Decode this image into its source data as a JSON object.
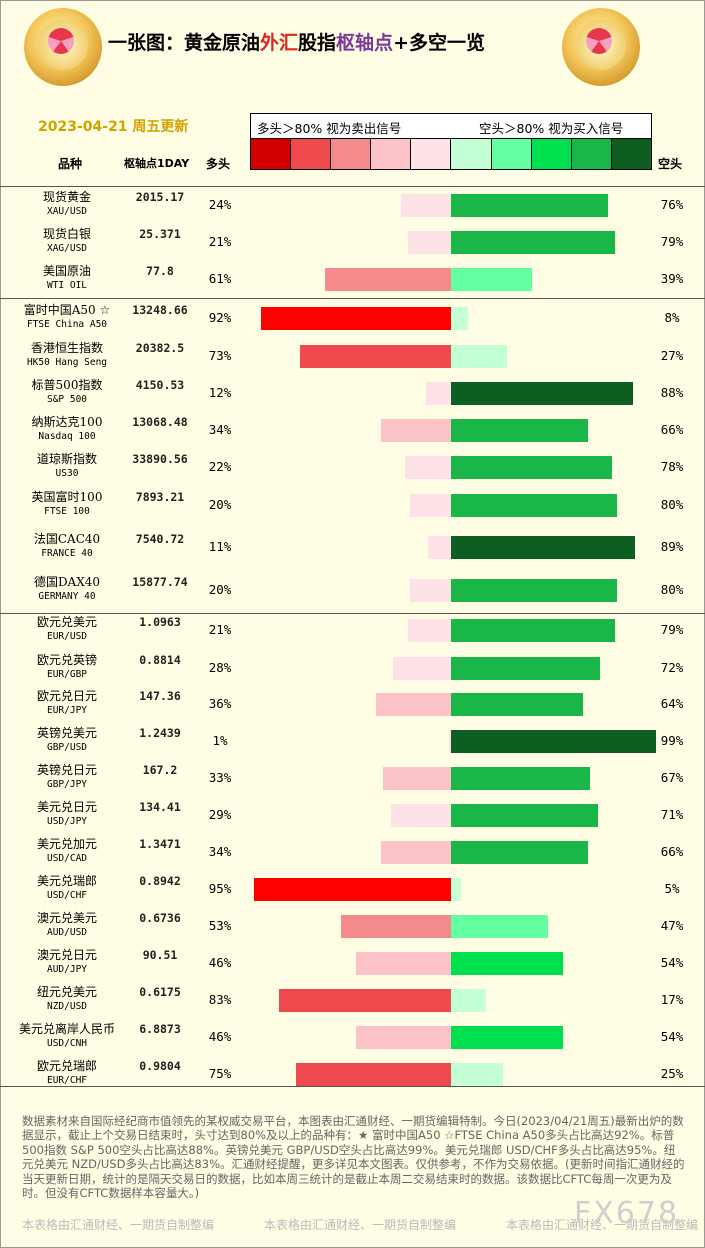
{
  "header": {
    "title_parts": [
      {
        "text": "一张图：黄金原油",
        "color": "#000000"
      },
      {
        "text": "外汇",
        "color": "#e0261b"
      },
      {
        "text": "股指",
        "color": "#000000"
      },
      {
        "text": "枢轴点",
        "color": "#7a3a9a"
      },
      {
        "text": "+多空一览",
        "color": "#000000"
      }
    ],
    "date": "2023-04-21 周五更新",
    "legend_left": "多头＞80% 视为卖出信号",
    "legend_right": "空头＞80% 视为买入信号",
    "logo_left": "gold-badge",
    "logo_right": "gold-badge"
  },
  "colors": {
    "swatches": [
      "#d40000",
      "#ee4a4e",
      "#f58a8c",
      "#fbc2c7",
      "#fde3e8",
      "#c4ffd6",
      "#63ffa0",
      "#00e04e",
      "#1ab648",
      "#0e5e22"
    ],
    "long_scale": [
      [
        90,
        "#ff0000"
      ],
      [
        70,
        "#ee4a4e"
      ],
      [
        50,
        "#f58a8c"
      ],
      [
        30,
        "#fbc2c7"
      ],
      [
        0,
        "#fde3e8"
      ]
    ],
    "short_scale": [
      [
        85,
        "#0e5e22"
      ],
      [
        60,
        "#1ab648"
      ],
      [
        50,
        "#00e04e"
      ],
      [
        30,
        "#63ffa0"
      ],
      [
        0,
        "#c4ffd6"
      ]
    ]
  },
  "columns": {
    "name": "品种",
    "pivot": "枢轴点1DAY",
    "long": "多头",
    "short": "空头"
  },
  "chart_data": {
    "type": "bar",
    "categories": [
      "现货黄金",
      "现货白银",
      "美国原油",
      "富时中国A50 ☆",
      "香港恒生指数",
      "标普500指数",
      "纳斯达克100",
      "道琼斯指数",
      "英国富时100",
      "法国CAC40",
      "德国DAX40",
      "欧元兑美元",
      "欧元兑英镑",
      "欧元兑日元",
      "英镑兑美元",
      "英镑兑日元",
      "美元兑日元",
      "美元兑加元",
      "美元兑瑞郎",
      "澳元兑美元",
      "澳元兑日元",
      "纽元兑美元",
      "美元兑离岸人民币",
      "欧元兑瑞郎"
    ],
    "series": [
      {
        "name": "多头",
        "values": [
          24,
          21,
          61,
          92,
          73,
          12,
          34,
          22,
          20,
          11,
          20,
          21,
          28,
          36,
          1,
          33,
          29,
          34,
          95,
          53,
          46,
          83,
          46,
          75
        ]
      },
      {
        "name": "空头",
        "values": [
          76,
          79,
          39,
          8,
          27,
          88,
          66,
          78,
          80,
          89,
          80,
          79,
          72,
          64,
          99,
          67,
          71,
          66,
          5,
          47,
          54,
          17,
          54,
          25
        ]
      }
    ],
    "ylim": [
      0,
      100
    ]
  },
  "rows": [
    {
      "cn": "现货黄金",
      "en": "XAU/USD",
      "pivot": "2015.17",
      "long": "24%",
      "short": "76%"
    },
    {
      "cn": "现货白银",
      "en": "XAG/USD",
      "pivot": "25.371",
      "long": "21%",
      "short": "79%"
    },
    {
      "cn": "美国原油",
      "en": "WTI OIL",
      "pivot": "77.8",
      "long": "61%",
      "short": "39%"
    },
    {
      "cn": "富时中国A50 ☆",
      "en": "FTSE China A50",
      "pivot": "13248.66",
      "long": "92%",
      "short": "8%"
    },
    {
      "cn": "香港恒生指数",
      "en": "HK50 Hang Seng",
      "pivot": "20382.5",
      "long": "73%",
      "short": "27%"
    },
    {
      "cn": "标普500指数",
      "en": "S&P 500",
      "pivot": "4150.53",
      "long": "12%",
      "short": "88%"
    },
    {
      "cn": "纳斯达克100",
      "en": "Nasdaq 100",
      "pivot": "13068.48",
      "long": "34%",
      "short": "66%"
    },
    {
      "cn": "道琼斯指数",
      "en": "US30",
      "pivot": "33890.56",
      "long": "22%",
      "short": "78%"
    },
    {
      "cn": "英国富时100",
      "en": "FTSE 100",
      "pivot": "7893.21",
      "long": "20%",
      "short": "80%"
    },
    {
      "cn": "法国CAC40",
      "en": "FRANCE 40",
      "pivot": "7540.72",
      "long": "11%",
      "short": "89%"
    },
    {
      "cn": "德国DAX40",
      "en": "GERMANY 40",
      "pivot": "15877.74",
      "long": "20%",
      "short": "80%"
    },
    {
      "cn": "欧元兑美元",
      "en": "EUR/USD",
      "pivot": "1.0963",
      "long": "21%",
      "short": "79%"
    },
    {
      "cn": "欧元兑英镑",
      "en": "EUR/GBP",
      "pivot": "0.8814",
      "long": "28%",
      "short": "72%"
    },
    {
      "cn": "欧元兑日元",
      "en": "EUR/JPY",
      "pivot": "147.36",
      "long": "36%",
      "short": "64%"
    },
    {
      "cn": "英镑兑美元",
      "en": "GBP/USD",
      "pivot": "1.2439",
      "long": "1%",
      "short": "99%"
    },
    {
      "cn": "英镑兑日元",
      "en": "GBP/JPY",
      "pivot": "167.2",
      "long": "33%",
      "short": "67%"
    },
    {
      "cn": "美元兑日元",
      "en": "USD/JPY",
      "pivot": "134.41",
      "long": "29%",
      "short": "71%"
    },
    {
      "cn": "美元兑加元",
      "en": "USD/CAD",
      "pivot": "1.3471",
      "long": "34%",
      "short": "66%"
    },
    {
      "cn": "美元兑瑞郎",
      "en": "USD/CHF",
      "pivot": "0.8942",
      "long": "95%",
      "short": "5%"
    },
    {
      "cn": "澳元兑美元",
      "en": "AUD/USD",
      "pivot": "0.6736",
      "long": "53%",
      "short": "47%"
    },
    {
      "cn": "澳元兑日元",
      "en": "AUD/JPY",
      "pivot": "90.51",
      "long": "46%",
      "short": "54%"
    },
    {
      "cn": "纽元兑美元",
      "en": "NZD/USD",
      "pivot": "0.6175",
      "long": "83%",
      "short": "17%"
    },
    {
      "cn": "美元兑离岸人民币",
      "en": "USD/CNH",
      "pivot": "6.8873",
      "long": "46%",
      "short": "54%"
    },
    {
      "cn": "欧元兑瑞郎",
      "en": "EUR/CHF",
      "pivot": "0.9804",
      "long": "75%",
      "short": "25%"
    }
  ],
  "footer": {
    "text": "数据素材来自国际经纪商市值领先的某权威交易平台，本图表由汇通财经、一期货编辑特制。今日(2023/04/21周五)最新出炉的数据显示，截止上个交易日结束时，头寸达到80%及以上的品种有：★ 富时中国A50 ☆FTSE China A50多头占比高达92%。标普500指数 S&P 500空头占比高达88%。英镑兑美元 GBP/USD空头占比高达99%。美元兑瑞郎 USD/CHF多头占比高达95%。纽元兑美元 NZD/USD多头占比高达83%。汇通财经提醒，更多详见本文图表。仅供参考，不作为交易依据。(更新时间指汇通财经的当天更新日期，统计的是隔天交易日的数据，比如本周三统计的是截止本周二交易结束时的数据。该数据比CFTC每周一次更为及时。但没有CFTC数据样本容量大。)",
    "watermark": "本表格由汇通财经、一期货自制整编",
    "brand": "FX678"
  }
}
